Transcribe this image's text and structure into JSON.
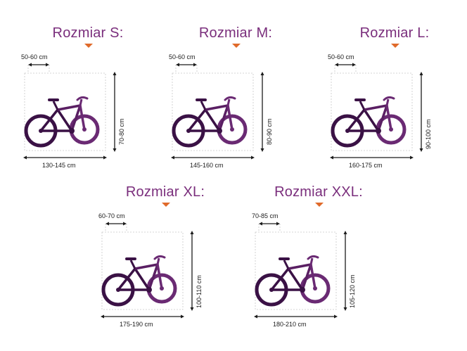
{
  "colors": {
    "title": "#7a2e7c",
    "bike_dark": "#3a1145",
    "bike_mid": "#6a2a73",
    "marker": "#e06a2a",
    "dim": "#1b1b1b"
  },
  "sizes": [
    {
      "title": "Rozmiar S:",
      "reach": "50-60 cm",
      "height": "70-80 cm",
      "length": "130-145 cm"
    },
    {
      "title": "Rozmiar M:",
      "reach": "50-60 cm",
      "height": "80-90 cm",
      "length": "145-160 cm"
    },
    {
      "title": "Rozmiar L:",
      "reach": "50-60 cm",
      "height": "90-100 cm",
      "length": "160-175 cm"
    },
    {
      "title": "Rozmiar XL:",
      "reach": "60-70 cm",
      "height": "100-110 cm",
      "length": "175-190 cm"
    },
    {
      "title": "Rozmiar  XXL:",
      "reach": "70-85 cm",
      "height": "105-120 cm",
      "length": "180-210 cm"
    }
  ],
  "icons": {
    "bike": "bicycle-icon",
    "marker": "down-triangle-icon"
  }
}
